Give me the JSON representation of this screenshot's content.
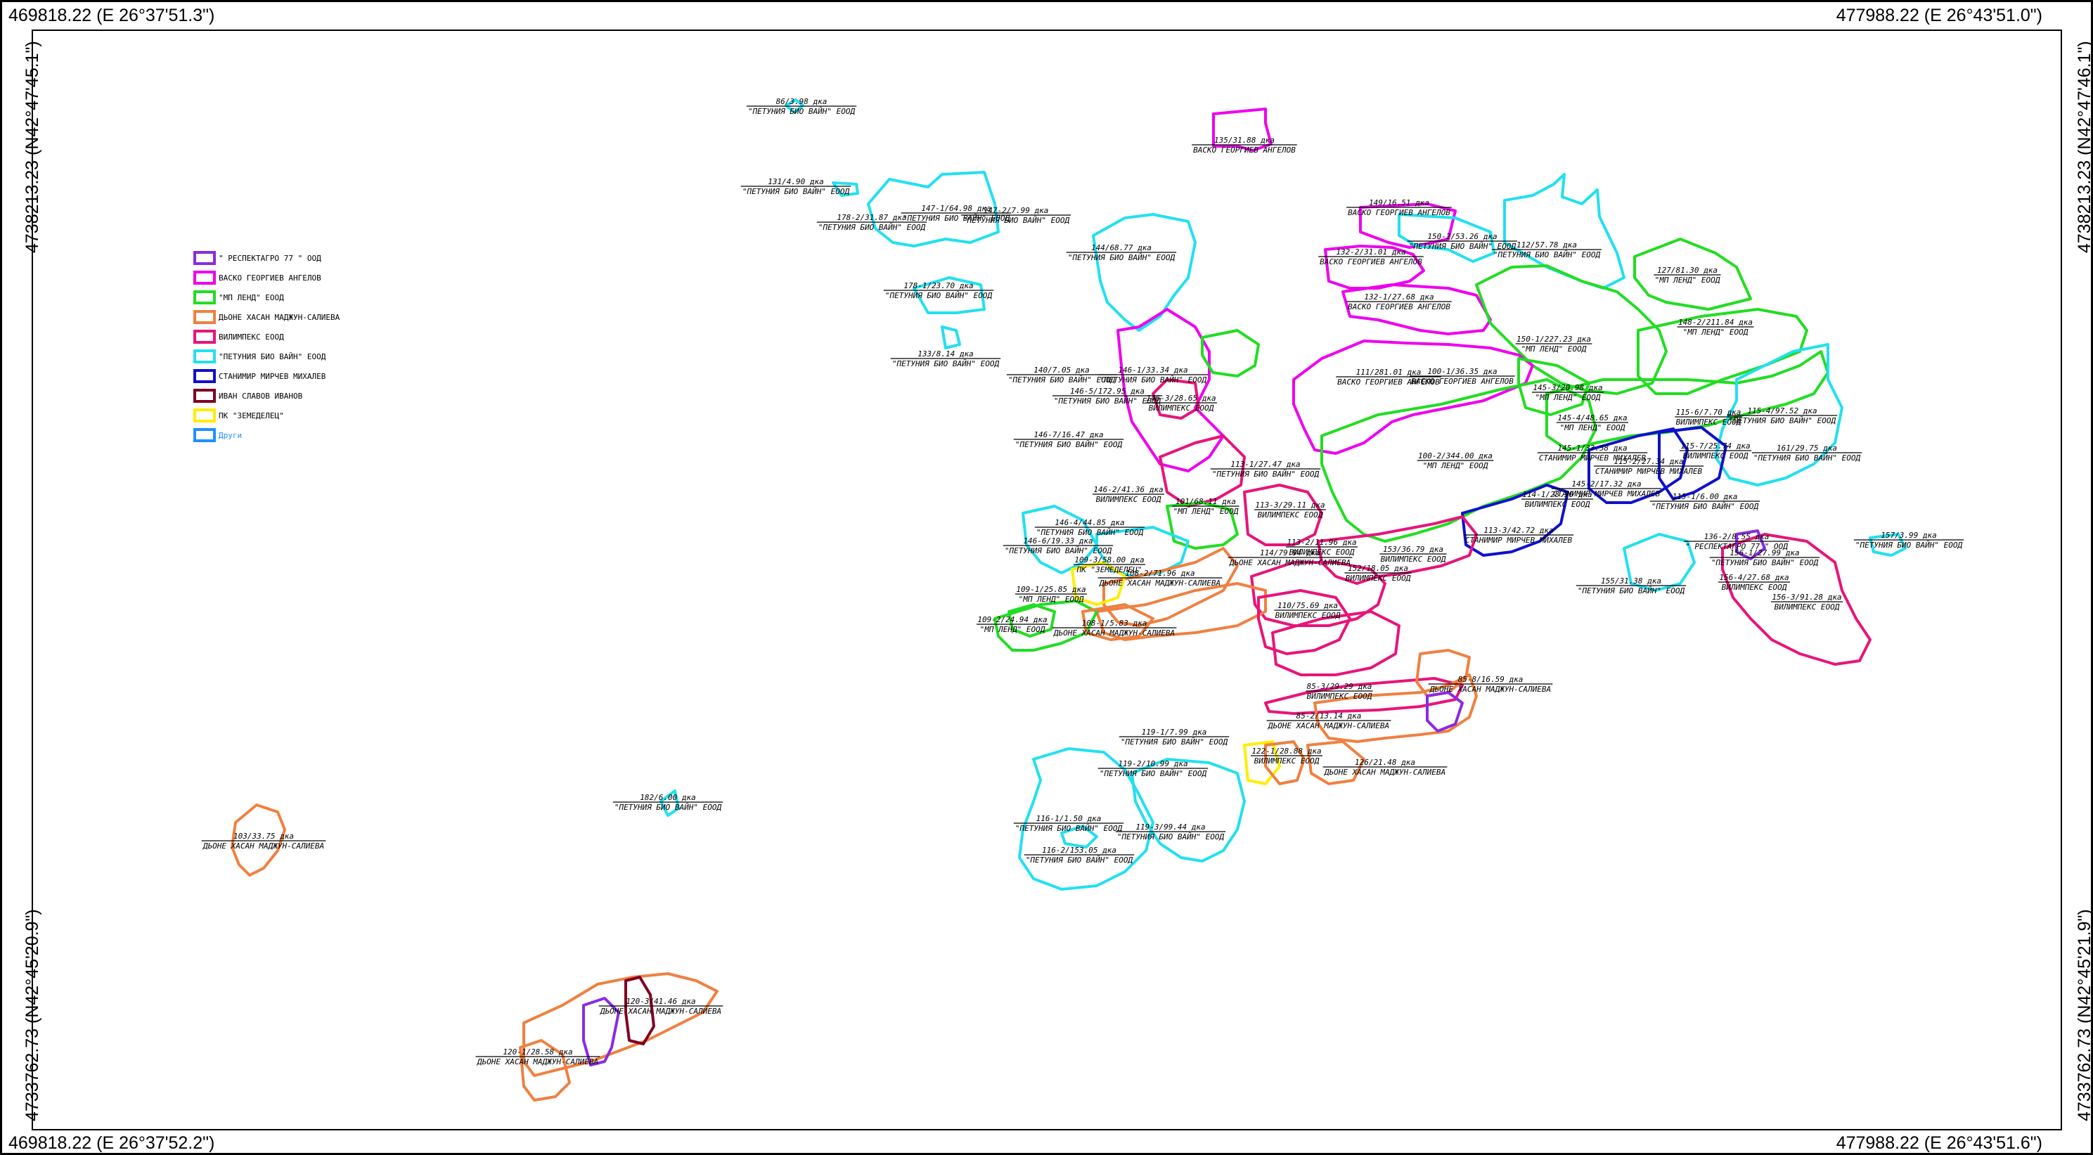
{
  "corners": {
    "top_left": "469818.22 (E 26°37'51.3\")",
    "top_right": "477988.22 (E 26°43'51.0\")",
    "bottom_left": "469818.22 (E 26°37'52.2\")",
    "bottom_right": "477988.22 (E 26°43'51.6\")",
    "left_top": "4738213.23 (N42°47'45.1\")",
    "left_bottom": "4733762.73 (N42°45'20.9\")",
    "right_top": "4738213.23 (N42°47'46.1\")",
    "right_bottom": "4733762.73 (N42°45'21.9\")"
  },
  "legend": [
    {
      "label": "\" РЕСПЕКТАГРО 77 \" ООД",
      "color": "#8a2be2"
    },
    {
      "label": "ВАСКО ГЕОРГИЕВ АНГЕЛОВ",
      "color": "#ee00ee"
    },
    {
      "label": "\"МП ЛЕНД\" ЕООД",
      "color": "#22dd22"
    },
    {
      "label": "ДЬОНЕ ХАСАН МАДЖУН-САЛИЕВА",
      "color": "#f08040"
    },
    {
      "label": "ВИЛИМПЕКС ЕООД",
      "color": "#e8147a"
    },
    {
      "label": "\"ПЕТУНИЯ БИО ВАЙН\" ЕООД",
      "color": "#22e0f0"
    },
    {
      "label": "СТАНИМИР МИРЧЕВ МИХАЛЕВ",
      "color": "#1010cc"
    },
    {
      "label": "ИВАН СЛАВОВ ИВАНОВ",
      "color": "#800020"
    },
    {
      "label": "ПК \"ЗЕМЕДЕЛЕЦ\"",
      "color": "#ffee00"
    },
    {
      "label": "Други",
      "color": "#1e90ff"
    }
  ],
  "plots": [
    {
      "id": "86/3.98 дка",
      "owner": "\"ПЕТУНИЯ БИО ВАЙН\" ЕООД",
      "color": "#22e0f0"
    },
    {
      "id": "135/31.88 дка",
      "owner": "ВАСКО ГЕОРГИЕВ АНГЕЛОВ",
      "color": "#ee00ee"
    },
    {
      "id": "131/4.90 дка",
      "owner": "\"ПЕТУНИЯ БИО ВАЙН\" ЕООД",
      "color": "#22e0f0"
    },
    {
      "id": "147-1/64.98 дка",
      "owner": "\"ПЕТУНИЯ БИО ВАЙН\" ЕООД",
      "color": "#22e0f0"
    },
    {
      "id": "178-2/31.87 дка",
      "owner": "\"ПЕТУНИЯ БИО ВАЙН\" ЕООД",
      "color": "#22e0f0"
    },
    {
      "id": "147-2/7.99 дка",
      "owner": "\"ПЕТУНИЯ БИО ВАЙН\" ЕООД",
      "color": "#22e0f0"
    },
    {
      "id": "149/16.51 дка",
      "owner": "ВАСКО ГЕОРГИЕВ АНГЕЛОВ",
      "color": "#ee00ee"
    },
    {
      "id": "150-2/53.26 дка",
      "owner": "\"ПЕТУНИЯ БИО ВАЙН\" ЕООД",
      "color": "#22e0f0"
    },
    {
      "id": "112/57.78 дка",
      "owner": "\"ПЕТУНИЯ БИО ВАЙН\" ЕООД",
      "color": "#22e0f0"
    },
    {
      "id": "144/68.77 дка",
      "owner": "\"ПЕТУНИЯ БИО ВАЙН\" ЕООД",
      "color": "#22e0f0"
    },
    {
      "id": "132-2/31.01 дка",
      "owner": "ВАСКО ГЕОРГИЕВ АНГЕЛОВ",
      "color": "#ee00ee"
    },
    {
      "id": "127/81.30 дка",
      "owner": "\"МП ЛЕНД\" ЕООД",
      "color": "#22dd22"
    },
    {
      "id": "178-1/23.70 дка",
      "owner": "\"ПЕТУНИЯ БИО ВАЙН\" ЕООД",
      "color": "#22e0f0"
    },
    {
      "id": "132-1/27.68 дка",
      "owner": "ВАСКО ГЕОРГИЕВ АНГЕЛОВ",
      "color": "#ee00ee"
    },
    {
      "id": "148-2/211.84 дка",
      "owner": "\"МП ЛЕНД\" ЕООД",
      "color": "#22dd22"
    },
    {
      "id": "133/8.14 дка",
      "owner": "\"ПЕТУНИЯ БИО ВАЙН\" ЕООД",
      "color": "#22e0f0"
    },
    {
      "id": "150-1/227.23 дка",
      "owner": "\"МП ЛЕНД\" ЕООД",
      "color": "#22dd22"
    },
    {
      "id": "140/7.05 дка",
      "owner": "\"ПЕТУНИЯ БИО ВАЙН\" ЕООД",
      "color": "#22e0f0"
    },
    {
      "id": "146-1/33.34 дка",
      "owner": "\"ПЕТУНИЯ БИО ВАЙН\" ЕООД",
      "color": "#22e0f0"
    },
    {
      "id": "111/281.01 дка",
      "owner": "ВАСКО ГЕОРГИЕВ АНГЕЛОВ",
      "color": "#ee00ee"
    },
    {
      "id": "100-1/36.35 дка",
      "owner": "ВАСКО ГЕОРГИЕВ АНГЕЛОВ",
      "color": "#ee00ee"
    },
    {
      "id": "145-3/20.98 дка",
      "owner": "\"МП ЛЕНД\" ЕООД",
      "color": "#22dd22"
    },
    {
      "id": "146-5/172.95 дка",
      "owner": "\"ПЕТУНИЯ БИО ВАЙН\" ЕООД",
      "color": "#22e0f0"
    },
    {
      "id": "146-3/28.65 дка",
      "owner": "ВИЛИМПЕКС ЕООД",
      "color": "#e8147a"
    },
    {
      "id": "115-6/7.70 дка",
      "owner": "ВИЛИМПЕКС ЕООД",
      "color": "#e8147a"
    },
    {
      "id": "115-4/97.52 дка",
      "owner": "\"ПЕТУНИЯ БИО ВАЙН\" ЕООД",
      "color": "#22e0f0"
    },
    {
      "id": "145-4/48.65 дка",
      "owner": "\"МП ЛЕНД\" ЕООД",
      "color": "#22dd22"
    },
    {
      "id": "146-7/16.47 дка",
      "owner": "\"ПЕТУНИЯ БИО ВАЙН\" ЕООД",
      "color": "#22e0f0"
    },
    {
      "id": "115-7/25.74 дка",
      "owner": "ВИЛИМПЕКС ЕООД",
      "color": "#e8147a"
    },
    {
      "id": "161/29.75 дка",
      "owner": "\"ПЕТУНИЯ БИО ВАЙН\" ЕООД",
      "color": "#22e0f0"
    },
    {
      "id": "145-1/33.58 дка",
      "owner": "СТАНИМИР МИРЧЕВ МИХАЛЕВ",
      "color": "#1010cc"
    },
    {
      "id": "100-2/344.00 дка",
      "owner": "\"МП ЛЕНД\" ЕООД",
      "color": "#22dd22"
    },
    {
      "id": "113-1/27.47 дка",
      "owner": "\"ПЕТУНИЯ БИО ВАЙН\" ЕООД",
      "color": "#22e0f0"
    },
    {
      "id": "115-2/27.34 дка",
      "owner": "СТАНИМИР МИРЧЕВ МИХАЛЕВ",
      "color": "#1010cc"
    },
    {
      "id": "145-2/17.32 дка",
      "owner": "СТАНИМИР МИРЧЕВ МИХАЛЕВ",
      "color": "#1010cc"
    },
    {
      "id": "114-1/28.50 дка",
      "owner": "ВИЛИМПЕКС ЕООД",
      "color": "#e8147a"
    },
    {
      "id": "115-1/6.00 дка",
      "owner": "\"ПЕТУНИЯ БИО ВАЙН\" ЕООД",
      "color": "#22e0f0"
    },
    {
      "id": "146-2/41.36 дка",
      "owner": "ВИЛИМПЕКС ЕООД",
      "color": "#e8147a"
    },
    {
      "id": "101/68.11 дка",
      "owner": "\"МП ЛЕНД\" ЕООД",
      "color": "#22dd22"
    },
    {
      "id": "113-3/29.11 дка",
      "owner": "ВИЛИМПЕКС ЕООД",
      "color": "#e8147a"
    },
    {
      "id": "146-4/44.85 дка",
      "owner": "\"ПЕТУНИЯ БИО ВАЙН\" ЕООД",
      "color": "#22e0f0"
    },
    {
      "id": "113-3/42.72 дка",
      "owner": "СТАНИМИР МИРЧЕВ МИХАЛЕВ",
      "color": "#1010cc"
    },
    {
      "id": "136-2/8.55 дка",
      "owner": "\" РЕСПЕКТАГРО 77 \" ООД",
      "color": "#8a2be2"
    },
    {
      "id": "157/3.99 дка",
      "owner": "\"ПЕТУНИЯ БИО ВАЙН\" ЕООД",
      "color": "#22e0f0"
    },
    {
      "id": "146-6/19.33 дка",
      "owner": "\"ПЕТУНИЯ БИО ВАЙН\" ЕООД",
      "color": "#22e0f0"
    },
    {
      "id": "113-2/11.96 дка",
      "owner": "ВИЛИМПЕКС ЕООД",
      "color": "#e8147a"
    },
    {
      "id": "153/36.79 дка",
      "owner": "ВИЛИМПЕКС ЕООД",
      "color": "#e8147a"
    },
    {
      "id": "114/79.94 дка",
      "owner": "ДЬОНЕ ХАСАН МАДЖУН-САЛИЕВА",
      "color": "#f08040"
    },
    {
      "id": "156-1/27.99 дка",
      "owner": "\"ПЕТУНИЯ БИО ВАЙН\" ЕООД",
      "color": "#22e0f0"
    },
    {
      "id": "109-3/58.00 дка",
      "owner": "ПК \"ЗЕМЕДЕЛЕЦ\"",
      "color": "#ffee00"
    },
    {
      "id": "152/18.05 дка",
      "owner": "ВИЛИМПЕКС ЕООД",
      "color": "#e8147a"
    },
    {
      "id": "108-2/71.96 дка",
      "owner": "ДЬОНЕ ХАСАН МАДЖУН-САЛИЕВА",
      "color": "#f08040"
    },
    {
      "id": "155/31.38 дка",
      "owner": "\"ПЕТУНИЯ БИО ВАЙН\" ЕООД",
      "color": "#22e0f0"
    },
    {
      "id": "156-4/27.68 дка",
      "owner": "ВИЛИМПЕКС ЕООД",
      "color": "#e8147a"
    },
    {
      "id": "109-1/25.85 дка",
      "owner": "\"МП ЛЕНД\" ЕООД",
      "color": "#22dd22"
    },
    {
      "id": "156-3/91.28 дка",
      "owner": "ВИЛИМПЕКС ЕООД",
      "color": "#e8147a"
    },
    {
      "id": "110/75.69 дка",
      "owner": "ВИЛИМПЕКС ЕООД",
      "color": "#e8147a"
    },
    {
      "id": "109-2/24.94 дка",
      "owner": "\"МП ЛЕНД\" ЕООД",
      "color": "#22dd22"
    },
    {
      "id": "108-1/5.83 дка",
      "owner": "ДЬОНЕ ХАСАН МАДЖУН-САЛИЕВА",
      "color": "#f08040"
    },
    {
      "id": "85-8/16.59 дка",
      "owner": "ДЬОНЕ ХАСАН МАДЖУН-САЛИЕВА",
      "color": "#f08040"
    },
    {
      "id": "85-3/29.29 дка",
      "owner": "ВИЛИМПЕКС ЕООД",
      "color": "#e8147a"
    },
    {
      "id": "85-2/13.14 дка",
      "owner": "ДЬОНЕ ХАСАН МАДЖУН-САЛИЕВА",
      "color": "#f08040"
    },
    {
      "id": "119-1/7.99 дка",
      "owner": "\"ПЕТУНИЯ БИО ВАЙН\" ЕООД",
      "color": "#22e0f0"
    },
    {
      "id": "122-1/28.88 дка",
      "owner": "ВИЛИМПЕКС ЕООД",
      "color": "#e8147a"
    },
    {
      "id": "119-2/10.99 дка",
      "owner": "\"ПЕТУНИЯ БИО ВАЙН\" ЕООД",
      "color": "#22e0f0"
    },
    {
      "id": "126/21.48 дка",
      "owner": "ДЬОНЕ ХАСАН МАДЖУН-САЛИЕВА",
      "color": "#f08040"
    },
    {
      "id": "182/6.00 дка",
      "owner": "\"ПЕТУНИЯ БИО ВАЙН\" ЕООД",
      "color": "#22e0f0"
    },
    {
      "id": "116-1/1.50 дка",
      "owner": "\"ПЕТУНИЯ БИО ВАЙН\" ЕООД",
      "color": "#22e0f0"
    },
    {
      "id": "119-3/99.44 дка",
      "owner": "\"ПЕТУНИЯ БИО ВАЙН\" ЕООД",
      "color": "#22e0f0"
    },
    {
      "id": "103/33.75 дка",
      "owner": "ДЬОНЕ ХАСАН МАДЖУН-САЛИЕВА",
      "color": "#f08040"
    },
    {
      "id": "116-2/153.05 дка",
      "owner": "\"ПЕТУНИЯ БИО ВАЙН\" ЕООД",
      "color": "#22e0f0"
    },
    {
      "id": "120-3/41.46 дка",
      "owner": "ДЬОНЕ ХАСАН МАДЖУН-САЛИЕВА",
      "color": "#f08040"
    },
    {
      "id": "120-1/28.58 дка",
      "owner": "ДЬОНЕ ХАСАН МАДЖУН-САЛИЕВА",
      "color": "#f08040"
    }
  ]
}
